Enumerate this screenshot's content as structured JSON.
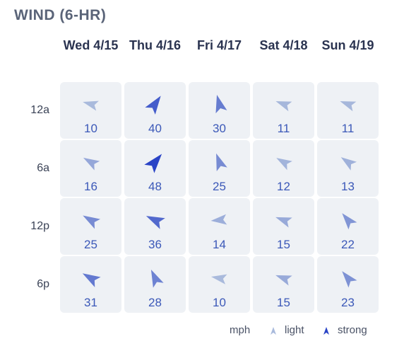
{
  "title": "WIND (6-HR)",
  "columns": [
    "Wed 4/15",
    "Thu 4/16",
    "Fri 4/17",
    "Sat 4/18",
    "Sun 4/19"
  ],
  "rows": [
    "12a",
    "6a",
    "12p",
    "6p"
  ],
  "cells": [
    [
      {
        "speed": 10,
        "dir": 285
      },
      {
        "speed": 40,
        "dir": 35
      },
      {
        "speed": 30,
        "dir": 345
      },
      {
        "speed": 11,
        "dir": 290
      },
      {
        "speed": 11,
        "dir": 290
      }
    ],
    [
      {
        "speed": 16,
        "dir": 300
      },
      {
        "speed": 48,
        "dir": 40
      },
      {
        "speed": 25,
        "dir": 340
      },
      {
        "speed": 12,
        "dir": 300
      },
      {
        "speed": 13,
        "dir": 305
      }
    ],
    [
      {
        "speed": 25,
        "dir": 300
      },
      {
        "speed": 36,
        "dir": 295
      },
      {
        "speed": 14,
        "dir": 265
      },
      {
        "speed": 15,
        "dir": 290
      },
      {
        "speed": 22,
        "dir": 320
      }
    ],
    [
      {
        "speed": 31,
        "dir": 300
      },
      {
        "speed": 28,
        "dir": 335
      },
      {
        "speed": 10,
        "dir": 280
      },
      {
        "speed": 15,
        "dir": 290
      },
      {
        "speed": 23,
        "dir": 320
      }
    ]
  ],
  "legend": {
    "unit": "mph",
    "light": "light",
    "strong": "strong"
  },
  "colors": {
    "light": "#a9badc",
    "strong": "#2a44c6"
  }
}
